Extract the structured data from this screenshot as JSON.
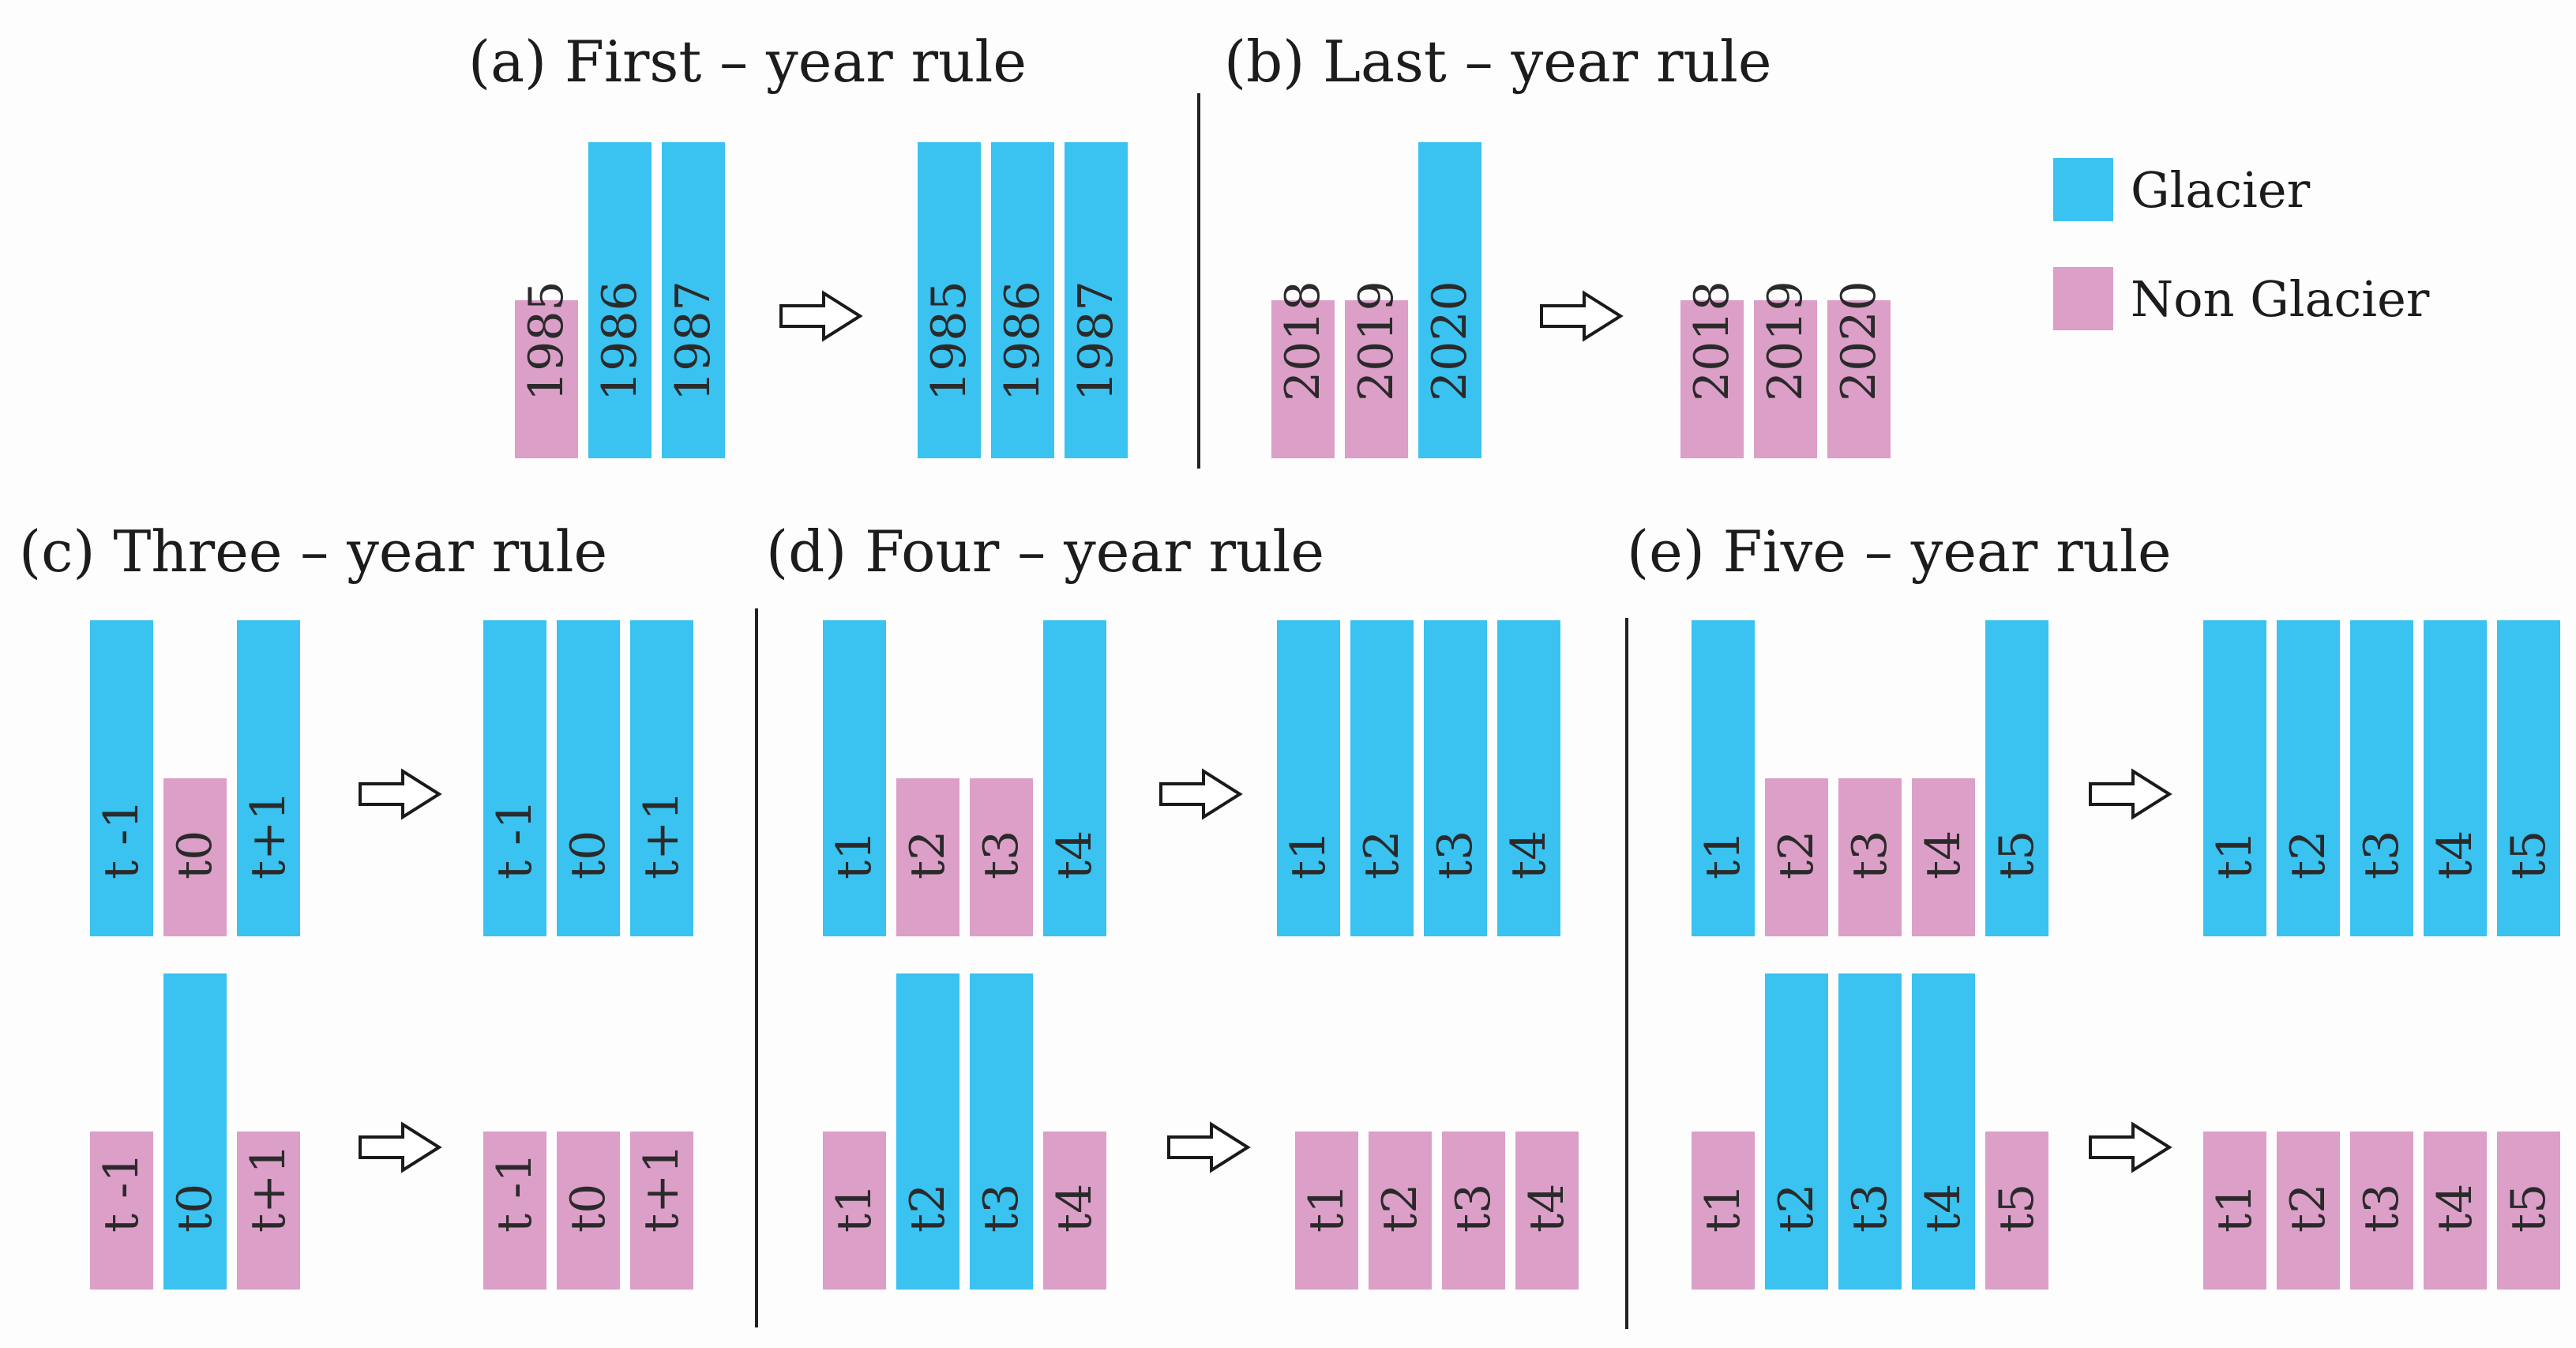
{
  "colors": {
    "glacier": "#3ac2f0",
    "non_glacier": "#dc9fc8"
  },
  "legend": [
    {
      "label": "Glacier",
      "class": "glacier"
    },
    {
      "label": "Non Glacier",
      "class": "non_glacier"
    }
  ],
  "panels": [
    {
      "id": "a",
      "title": "(a) First – year rule",
      "rows": [
        {
          "before": [
            {
              "label": "1985",
              "class": "non_glacier"
            },
            {
              "label": "1986",
              "class": "glacier"
            },
            {
              "label": "1987",
              "class": "glacier"
            }
          ],
          "after": [
            {
              "label": "1985",
              "class": "glacier"
            },
            {
              "label": "1986",
              "class": "glacier"
            },
            {
              "label": "1987",
              "class": "glacier"
            }
          ]
        }
      ]
    },
    {
      "id": "b",
      "title": "(b) Last – year rule",
      "rows": [
        {
          "before": [
            {
              "label": "2018",
              "class": "non_glacier"
            },
            {
              "label": "2019",
              "class": "non_glacier"
            },
            {
              "label": "2020",
              "class": "glacier"
            }
          ],
          "after": [
            {
              "label": "2018",
              "class": "non_glacier"
            },
            {
              "label": "2019",
              "class": "non_glacier"
            },
            {
              "label": "2020",
              "class": "non_glacier"
            }
          ]
        }
      ]
    },
    {
      "id": "c",
      "title": "(c) Three – year rule",
      "rows": [
        {
          "before": [
            {
              "label": "t -1",
              "class": "glacier"
            },
            {
              "label": "t0",
              "class": "non_glacier"
            },
            {
              "label": "t+1",
              "class": "glacier"
            }
          ],
          "after": [
            {
              "label": "t -1",
              "class": "glacier"
            },
            {
              "label": "t0",
              "class": "glacier"
            },
            {
              "label": "t+1",
              "class": "glacier"
            }
          ]
        },
        {
          "before": [
            {
              "label": "t -1",
              "class": "non_glacier"
            },
            {
              "label": "t0",
              "class": "glacier"
            },
            {
              "label": "t+1",
              "class": "non_glacier"
            }
          ],
          "after": [
            {
              "label": "t -1",
              "class": "non_glacier"
            },
            {
              "label": "t0",
              "class": "non_glacier"
            },
            {
              "label": "t+1",
              "class": "non_glacier"
            }
          ]
        }
      ]
    },
    {
      "id": "d",
      "title": "(d) Four – year rule",
      "rows": [
        {
          "before": [
            {
              "label": "t1",
              "class": "glacier"
            },
            {
              "label": "t2",
              "class": "non_glacier"
            },
            {
              "label": "t3",
              "class": "non_glacier"
            },
            {
              "label": "t4",
              "class": "glacier"
            }
          ],
          "after": [
            {
              "label": "t1",
              "class": "glacier"
            },
            {
              "label": "t2",
              "class": "glacier"
            },
            {
              "label": "t3",
              "class": "glacier"
            },
            {
              "label": "t4",
              "class": "glacier"
            }
          ]
        },
        {
          "before": [
            {
              "label": "t1",
              "class": "non_glacier"
            },
            {
              "label": "t2",
              "class": "glacier"
            },
            {
              "label": "t3",
              "class": "glacier"
            },
            {
              "label": "t4",
              "class": "non_glacier"
            }
          ],
          "after": [
            {
              "label": "t1",
              "class": "non_glacier"
            },
            {
              "label": "t2",
              "class": "non_glacier"
            },
            {
              "label": "t3",
              "class": "non_glacier"
            },
            {
              "label": "t4",
              "class": "non_glacier"
            }
          ]
        }
      ]
    },
    {
      "id": "e",
      "title": "(e) Five – year rule",
      "rows": [
        {
          "before": [
            {
              "label": "t1",
              "class": "glacier"
            },
            {
              "label": "t2",
              "class": "non_glacier"
            },
            {
              "label": "t3",
              "class": "non_glacier"
            },
            {
              "label": "t4",
              "class": "non_glacier"
            },
            {
              "label": "t5",
              "class": "glacier"
            }
          ],
          "after": [
            {
              "label": "t1",
              "class": "glacier"
            },
            {
              "label": "t2",
              "class": "glacier"
            },
            {
              "label": "t3",
              "class": "glacier"
            },
            {
              "label": "t4",
              "class": "glacier"
            },
            {
              "label": "t5",
              "class": "glacier"
            }
          ]
        },
        {
          "before": [
            {
              "label": "t1",
              "class": "non_glacier"
            },
            {
              "label": "t2",
              "class": "glacier"
            },
            {
              "label": "t3",
              "class": "glacier"
            },
            {
              "label": "t4",
              "class": "glacier"
            },
            {
              "label": "t5",
              "class": "non_glacier"
            }
          ],
          "after": [
            {
              "label": "t1",
              "class": "non_glacier"
            },
            {
              "label": "t2",
              "class": "non_glacier"
            },
            {
              "label": "t3",
              "class": "non_glacier"
            },
            {
              "label": "t4",
              "class": "non_glacier"
            },
            {
              "label": "t5",
              "class": "non_glacier"
            }
          ]
        }
      ]
    }
  ]
}
